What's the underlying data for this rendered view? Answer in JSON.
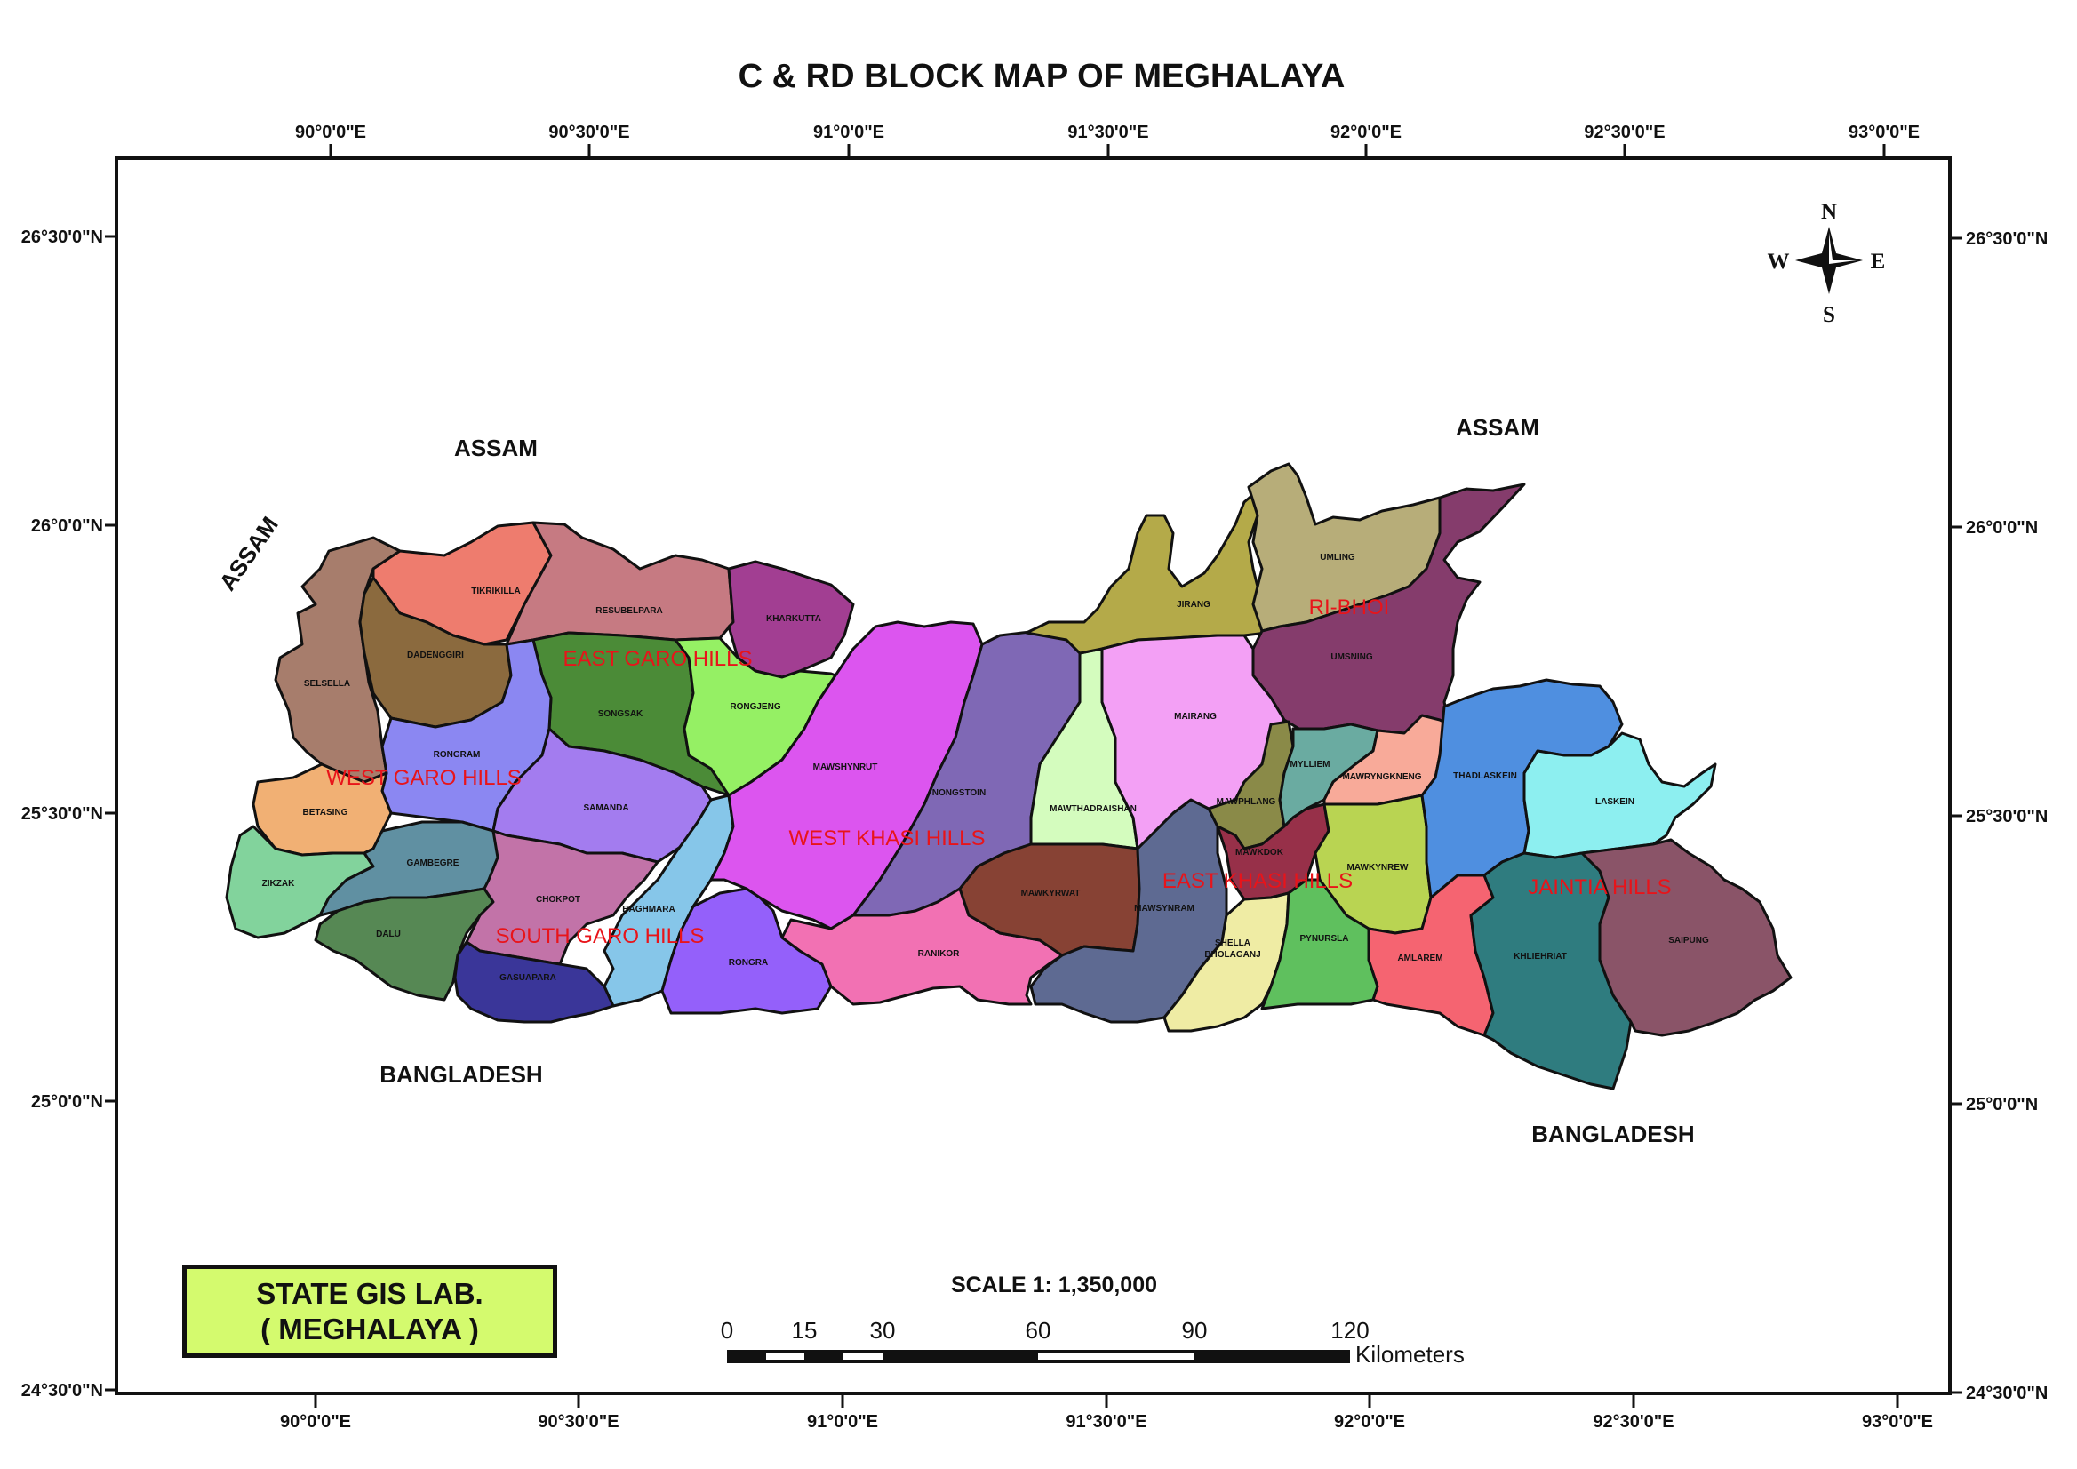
{
  "title": "C & RD BLOCK MAP OF MEGHALAYA",
  "lon_ticks": [
    "90°0'0\"E",
    "90°30'0\"E",
    "91°0'0\"E",
    "91°30'0\"E",
    "92°0'0\"E",
    "92°30'0\"E",
    "93°0'0\"E"
  ],
  "lat_ticks": [
    "26°30'0\"N",
    "26°0'0\"N",
    "25°30'0\"N",
    "25°0'0\"N",
    "24°30'0\"N"
  ],
  "neighbors": {
    "assam_nw": "ASSAM",
    "assam_n": "ASSAM",
    "assam_ne": "ASSAM",
    "bangladesh_s": "BANGLADESH",
    "bangladesh_se": "BANGLADESH"
  },
  "districts": {
    "west_garo": "WEST GARO HILLS",
    "east_garo": "EAST GARO HILLS",
    "south_garo": "SOUTH GARO HILLS",
    "west_khasi": "WEST KHASI HILLS",
    "east_khasi": "EAST KHASI HILLS",
    "ri_bhoi": "RI-BHOI",
    "jaintia": "JAINTIA HILLS"
  },
  "blocks": {
    "selsella": "SELSELLA",
    "tikrikilla": "TIKRIKILLA",
    "dadenggiri": "DADENGGIRI",
    "resubelpara": "RESUBELPARA",
    "kharkutta": "KHARKUTTA",
    "songsak": "SONGSAK",
    "rongjeng": "RONGJENG",
    "rongram": "RONGRAM",
    "betasing": "BETASING",
    "samanda": "SAMANDA",
    "zikzak": "ZIKZAK",
    "gambegre": "GAMBEGRE",
    "dalu": "DALU",
    "chokpot": "CHOKPOT",
    "baghmara": "BAGHMARA",
    "gasuapara": "GASUAPARA",
    "rongra": "RONGRA",
    "mawshynrut": "MAWSHYNRUT",
    "nongstoin": "NONGSTOIN",
    "ranikor": "RANIKOR",
    "mawthadraishan": "MAWTHADRAISHAN",
    "mawkyrwat": "MAWKYRWAT",
    "jirang": "JIRANG",
    "umling": "UMLING",
    "umsning": "UMSNING",
    "mairang": "MAIRANG",
    "mawphlang": "MAWPHLANG",
    "mylliem": "MYLLIEM",
    "mawryngkneng": "MAWRYNGKNENG",
    "mawkdok": "MAWKDOK",
    "mawkynrew": "MAWKYNREW",
    "mawsynram": "MAWSYNRAM",
    "shella_1": "SHELLA",
    "shella_2": "BHOLAGANJ",
    "pynursla": "PYNURSLA",
    "amlarem": "AMLAREM",
    "thadlaskein": "THADLASKEIN",
    "laskein": "LASKEIN",
    "khliehriat": "KHLIEHRIAT",
    "saipung": "SAIPUNG"
  },
  "compass": {
    "n": "N",
    "s": "S",
    "e": "E",
    "w": "W"
  },
  "scale": {
    "title": "SCALE 1: 1,350,000",
    "labels": [
      "0",
      "15",
      "30",
      "60",
      "90",
      "120"
    ],
    "unit": "Kilometers"
  },
  "lab": {
    "line1": "STATE GIS LAB.",
    "line2": "( MEGHALAYA )"
  },
  "colors": {
    "frame": "#111111",
    "district_label": "#e8141a",
    "lab_box": "#d4fa6e"
  }
}
